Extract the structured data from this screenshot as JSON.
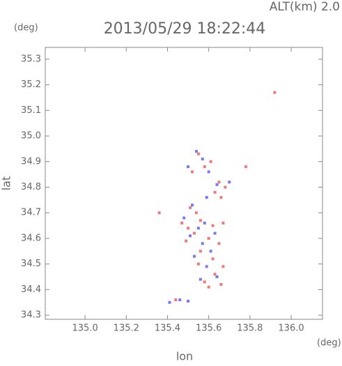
{
  "chart_data": {
    "type": "scatter",
    "title": "2013/05/29 18:22:44",
    "subtitle": "ALT(km) 2.0",
    "y_unit": "(deg)",
    "x_unit": "(deg)",
    "x_label": "lon",
    "y_label": "lat",
    "xlim": [
      134.807,
      136.152
    ],
    "ylim": [
      34.284,
      35.346
    ],
    "xticks": [
      {
        "value": 135.0,
        "label": "135.0"
      },
      135.2,
      135.4,
      135.6,
      135.8,
      {
        "value": 136.0,
        "label": "136.0"
      }
    ],
    "yticks": [
      34.3,
      34.4,
      34.5,
      34.6,
      34.7,
      34.8,
      34.9,
      {
        "value": 35.0,
        "label": "35.0"
      },
      35.1,
      35.2,
      35.3
    ],
    "series": [
      {
        "color": "#f07878",
        "x": [
          135.55,
          135.58,
          135.52,
          135.61,
          135.65,
          135.63,
          135.68,
          135.66,
          135.51,
          135.54,
          135.47,
          135.5,
          135.56,
          135.62,
          135.67,
          135.53,
          135.6,
          135.65,
          135.49,
          135.56,
          135.62,
          135.55,
          135.67,
          135.63,
          135.58,
          135.66,
          135.6,
          135.92,
          135.36,
          135.78,
          135.44
        ],
        "y": [
          34.93,
          34.88,
          34.86,
          34.9,
          34.82,
          34.78,
          34.8,
          34.76,
          34.72,
          34.7,
          34.66,
          34.64,
          34.67,
          34.65,
          34.66,
          34.62,
          34.6,
          34.58,
          34.59,
          34.55,
          34.52,
          34.5,
          34.49,
          34.46,
          34.43,
          34.42,
          34.41,
          35.17,
          34.7,
          34.88,
          34.36
        ]
      },
      {
        "color": "#7878f0",
        "x": [
          135.54,
          135.57,
          135.5,
          135.6,
          135.64,
          135.7,
          135.59,
          135.52,
          135.48,
          135.55,
          135.58,
          135.63,
          135.51,
          135.57,
          135.61,
          135.53,
          135.59,
          135.64,
          135.56,
          135.41,
          135.46,
          135.5
        ],
        "y": [
          34.94,
          34.91,
          34.88,
          34.86,
          34.81,
          34.82,
          34.76,
          34.73,
          34.68,
          34.64,
          34.66,
          34.62,
          34.61,
          34.58,
          34.55,
          34.53,
          34.49,
          34.45,
          34.44,
          34.35,
          34.36,
          34.355
        ]
      }
    ]
  }
}
